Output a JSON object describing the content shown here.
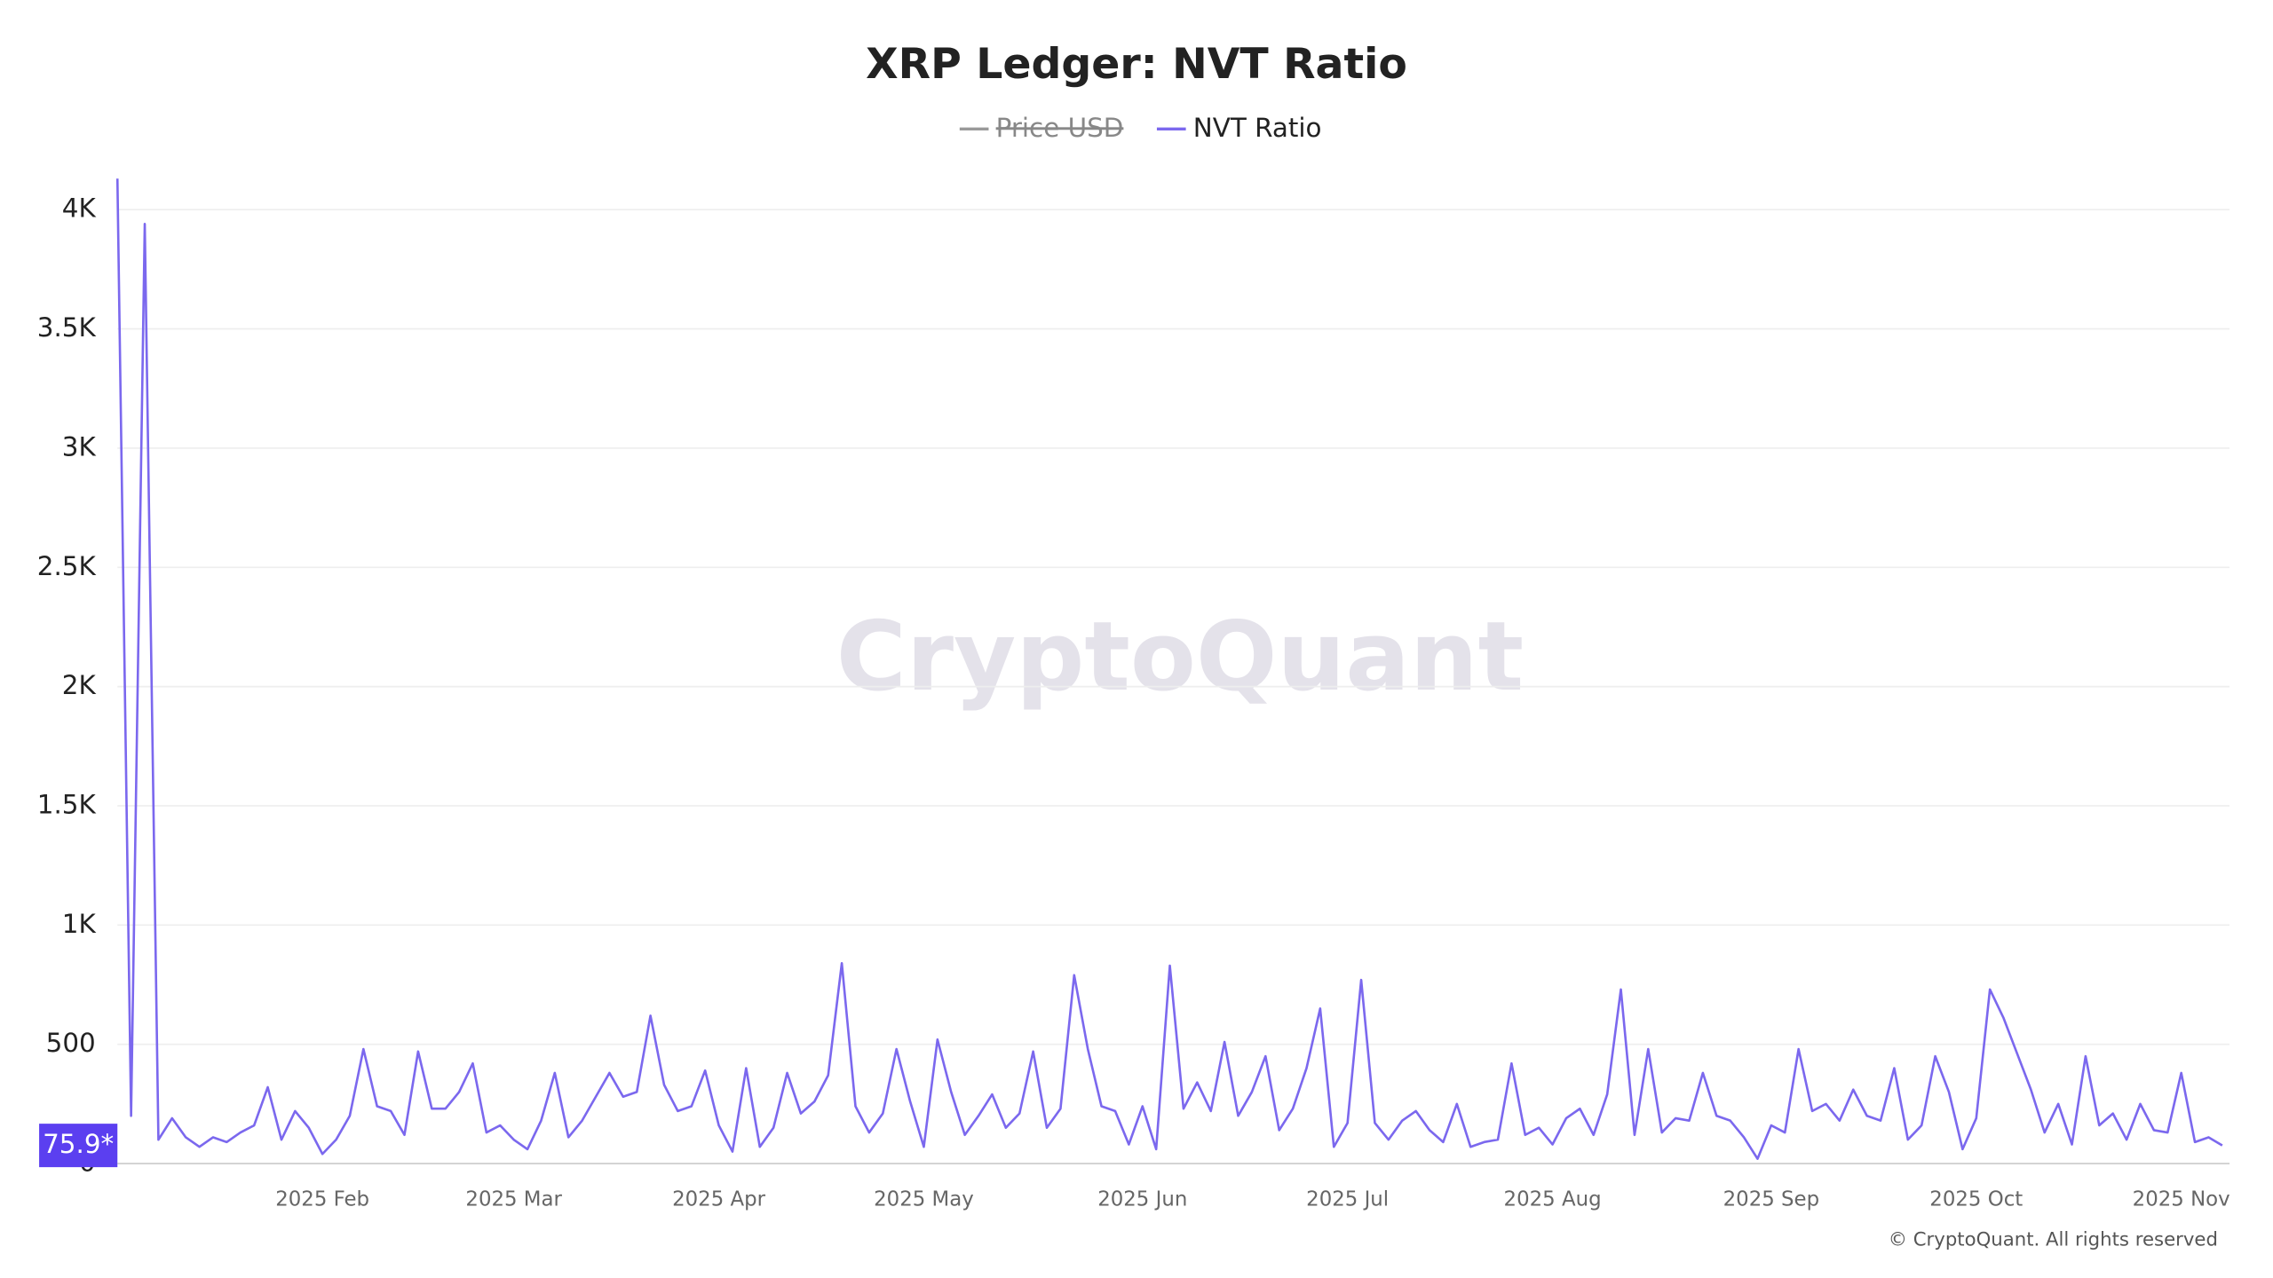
{
  "chart_data": {
    "type": "line",
    "title": "XRP Ledger: NVT Ratio",
    "watermark": "CryptoQuant",
    "copyright": "© CryptoQuant. All rights reserved",
    "last_value_label": "75.9*",
    "grid": true,
    "ylim": [
      0,
      4150
    ],
    "yticks": [
      0,
      500,
      {
        "value": 1000,
        "label": "1K"
      },
      {
        "value": 1500,
        "label": "1.5K"
      },
      {
        "value": 2000,
        "label": "2K"
      },
      {
        "value": 2500,
        "label": "2.5K"
      },
      {
        "value": 3000,
        "label": "3K"
      },
      {
        "value": 3500,
        "label": "3.5K"
      },
      {
        "value": 4000,
        "label": "4K"
      }
    ],
    "categories": [
      null,
      null,
      null,
      null,
      null,
      null,
      null,
      null,
      null,
      null,
      null,
      null,
      null,
      null,
      null,
      "2025 Feb",
      null,
      null,
      null,
      null,
      null,
      null,
      null,
      null,
      null,
      null,
      null,
      null,
      null,
      "2025 Mar",
      null,
      null,
      null,
      null,
      null,
      null,
      null,
      null,
      null,
      null,
      null,
      null,
      null,
      null,
      "2025 Apr",
      null,
      null,
      null,
      null,
      null,
      null,
      null,
      null,
      null,
      null,
      null,
      null,
      null,
      null,
      "2025 May",
      null,
      null,
      null,
      null,
      null,
      null,
      null,
      null,
      null,
      null,
      null,
      null,
      null,
      null,
      null,
      "2025 Jun",
      null,
      null,
      null,
      null,
      null,
      null,
      null,
      null,
      null,
      null,
      null,
      null,
      null,
      null,
      "2025 Jul",
      null,
      null,
      null,
      null,
      null,
      null,
      null,
      null,
      null,
      null,
      null,
      null,
      null,
      null,
      "2025 Aug",
      null,
      null,
      null,
      null,
      null,
      null,
      null,
      null,
      null,
      null,
      null,
      null,
      null,
      null,
      null,
      "2025 Sep",
      null,
      null,
      null,
      null,
      null,
      null,
      null,
      null,
      null,
      null,
      null,
      null,
      null,
      null,
      "2025 Oct",
      null,
      null,
      null,
      null,
      null,
      null,
      null,
      null,
      null,
      null,
      null,
      null,
      null,
      null,
      "2025 Nov",
      null,
      null,
      null
    ],
    "series": [
      {
        "name": "Price USD",
        "color": "#999999",
        "hidden": true,
        "values": null
      },
      {
        "name": "NVT Ratio",
        "color": "#7b68ee",
        "values": [
          4130,
          200,
          3940,
          100,
          190,
          110,
          70,
          110,
          90,
          130,
          160,
          320,
          100,
          220,
          150,
          40,
          100,
          200,
          480,
          240,
          220,
          120,
          470,
          230,
          230,
          300,
          420,
          130,
          160,
          100,
          60,
          180,
          380,
          110,
          180,
          280,
          380,
          280,
          300,
          620,
          330,
          220,
          240,
          390,
          160,
          50,
          400,
          70,
          150,
          380,
          210,
          260,
          370,
          840,
          240,
          130,
          210,
          480,
          260,
          70,
          520,
          300,
          120,
          200,
          290,
          150,
          210,
          470,
          150,
          230,
          790,
          480,
          240,
          220,
          80,
          240,
          60,
          830,
          230,
          340,
          220,
          510,
          200,
          300,
          450,
          140,
          230,
          400,
          650,
          70,
          170,
          770,
          170,
          100,
          180,
          220,
          140,
          90,
          250,
          70,
          90,
          100,
          420,
          120,
          150,
          80,
          190,
          230,
          120,
          290,
          730,
          120,
          480,
          130,
          190,
          180,
          380,
          200,
          180,
          110,
          20,
          160,
          130,
          480,
          220,
          250,
          180,
          310,
          200,
          180,
          400,
          100,
          160,
          450,
          300,
          60,
          190,
          730,
          610,
          460,
          310,
          130,
          250,
          80,
          450,
          160,
          210,
          100,
          250,
          140,
          130,
          380,
          90,
          110,
          75.9
        ]
      }
    ]
  }
}
